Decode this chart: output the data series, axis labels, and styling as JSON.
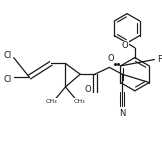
{
  "bg_color": "#ffffff",
  "line_color": "#1a1a1a",
  "lw": 0.9,
  "figsize": [
    1.62,
    1.67
  ],
  "dpi": 100,
  "xlim": [
    0,
    162
  ],
  "ylim": [
    0,
    167
  ]
}
